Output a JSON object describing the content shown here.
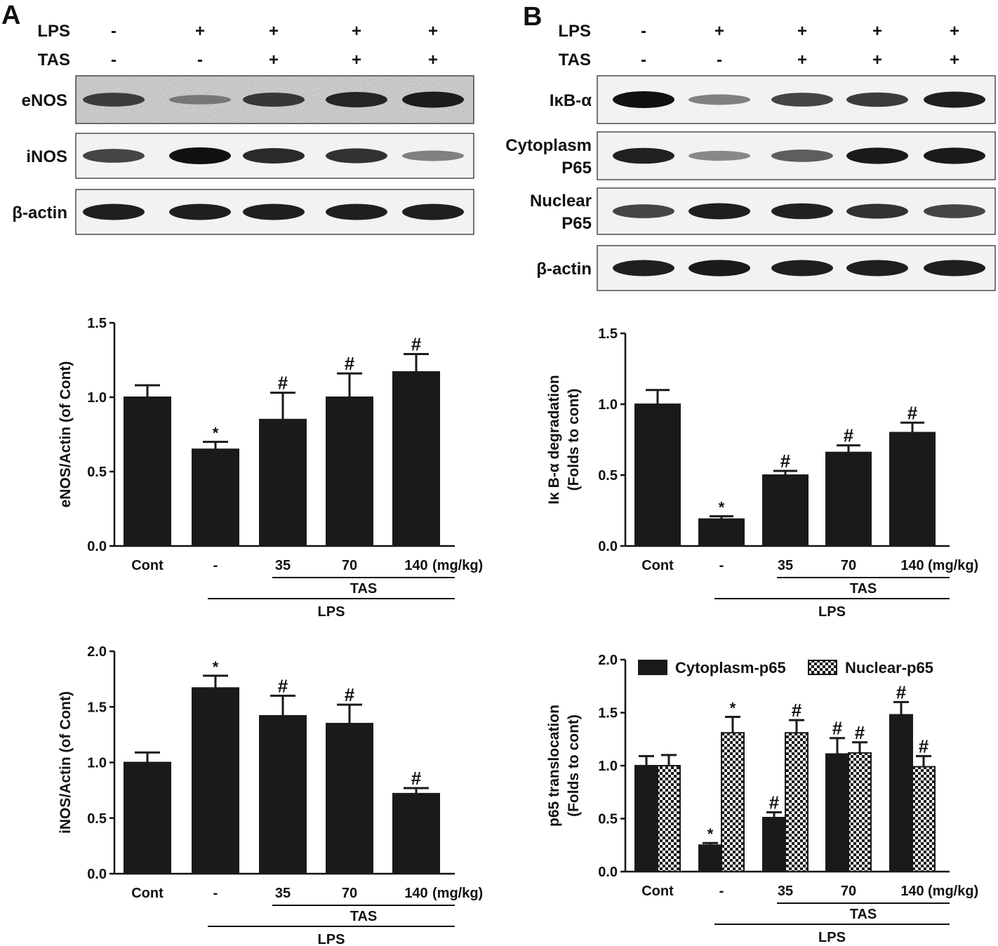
{
  "colors": {
    "bar": "#1a1a1a",
    "axis": "#111111",
    "hatch": "#1a1a1a",
    "background": "#ffffff"
  },
  "panel_a": {
    "label": "A",
    "treatments": [
      {
        "name": "LPS",
        "marks": [
          "-",
          "+",
          "+",
          "+",
          "+"
        ]
      },
      {
        "name": "TAS",
        "marks": [
          "-",
          "-",
          "+",
          "+",
          "+"
        ]
      }
    ],
    "blots": [
      {
        "label": "eNOS",
        "intensity": [
          0.7,
          0.25,
          0.72,
          0.85,
          0.92
        ],
        "texture": "noisy"
      },
      {
        "label": "iNOS",
        "intensity": [
          0.7,
          1.0,
          0.85,
          0.8,
          0.35
        ],
        "texture": "clean"
      },
      {
        "label": "β-actin",
        "intensity": [
          0.92,
          0.92,
          0.92,
          0.92,
          0.92
        ],
        "texture": "clean"
      }
    ]
  },
  "panel_b": {
    "label": "B",
    "treatments": [
      {
        "name": "LPS",
        "marks": [
          "-",
          "+",
          "+",
          "+",
          "+"
        ]
      },
      {
        "name": "TAS",
        "marks": [
          "-",
          "-",
          "+",
          "+",
          "+"
        ]
      }
    ],
    "blots": [
      {
        "label_lines": [
          "IκB-α"
        ],
        "intensity": [
          1.0,
          0.35,
          0.7,
          0.75,
          0.92
        ]
      },
      {
        "label_lines": [
          "Cytoplasm",
          "P65"
        ],
        "intensity": [
          0.9,
          0.3,
          0.55,
          0.95,
          0.95
        ]
      },
      {
        "label_lines": [
          "Nuclear",
          "P65"
        ],
        "intensity": [
          0.7,
          0.92,
          0.9,
          0.8,
          0.7
        ]
      },
      {
        "label_lines": [
          "β-actin"
        ],
        "intensity": [
          0.92,
          0.95,
          0.92,
          0.92,
          0.92
        ]
      }
    ]
  },
  "chart_data": [
    {
      "type": "bar",
      "ylabel": "eNOS/Actin (of Cont)",
      "ylim": [
        0,
        1.5
      ],
      "yticks": [
        "0.0",
        "0.5",
        "1.0",
        "1.5"
      ],
      "categories": [
        "Cont",
        "-",
        "35",
        "70",
        "140"
      ],
      "unit": "(mg/kg)",
      "bracket_labels": {
        "tas": "TAS",
        "lps": "LPS"
      },
      "series": [
        {
          "values": [
            1.0,
            0.65,
            0.85,
            1.0,
            1.17
          ],
          "errors": [
            0.08,
            0.05,
            0.18,
            0.16,
            0.12
          ],
          "marks": [
            "",
            "*",
            "#",
            "#",
            "#"
          ],
          "fill": "solid"
        }
      ]
    },
    {
      "type": "bar",
      "ylabel": "iNOS/Actin (of Cont)",
      "ylim": [
        0,
        2.0
      ],
      "yticks": [
        "0.0",
        "0.5",
        "1.0",
        "1.5",
        "2.0"
      ],
      "categories": [
        "Cont",
        "-",
        "35",
        "70",
        "140"
      ],
      "unit": "(mg/kg)",
      "bracket_labels": {
        "tas": "TAS",
        "lps": "LPS"
      },
      "series": [
        {
          "values": [
            1.0,
            1.67,
            1.42,
            1.35,
            0.72
          ],
          "errors": [
            0.09,
            0.11,
            0.18,
            0.17,
            0.05
          ],
          "marks": [
            "",
            "*",
            "#",
            "#",
            "#"
          ],
          "fill": "solid"
        }
      ]
    },
    {
      "type": "bar",
      "ylabel": "Iκ B-α  degradation",
      "ylabel2": "(Folds to cont)",
      "ylim": [
        0,
        1.5
      ],
      "yticks": [
        "0.0",
        "0.5",
        "1.0",
        "1.5"
      ],
      "categories": [
        "Cont",
        "-",
        "35",
        "70",
        "140"
      ],
      "unit": "(mg/kg)",
      "bracket_labels": {
        "tas": "TAS",
        "lps": "LPS"
      },
      "series": [
        {
          "values": [
            1.0,
            0.19,
            0.5,
            0.66,
            0.8
          ],
          "errors": [
            0.1,
            0.02,
            0.03,
            0.05,
            0.07
          ],
          "marks": [
            "",
            "*",
            "#",
            "#",
            "#"
          ],
          "fill": "solid"
        }
      ]
    },
    {
      "type": "bar",
      "ylabel": "p65 translocation",
      "ylabel2": "(Folds to cont)",
      "ylim": [
        0,
        2.0
      ],
      "yticks": [
        "0.0",
        "0.5",
        "1.0",
        "1.5",
        "2.0"
      ],
      "categories": [
        "Cont",
        "-",
        "35",
        "70",
        "140"
      ],
      "unit": "(mg/kg)",
      "bracket_labels": {
        "tas": "TAS",
        "lps": "LPS"
      },
      "legend": "top",
      "series": [
        {
          "name": "Cytoplasm-p65",
          "values": [
            1.0,
            0.25,
            0.51,
            1.11,
            1.48
          ],
          "errors": [
            0.09,
            0.02,
            0.05,
            0.15,
            0.12
          ],
          "marks": [
            "",
            "*",
            "#",
            "#",
            "#"
          ],
          "fill": "solid"
        },
        {
          "name": "Nuclear-p65",
          "values": [
            1.0,
            1.31,
            1.31,
            1.12,
            0.99
          ],
          "errors": [
            0.1,
            0.15,
            0.12,
            0.1,
            0.1
          ],
          "marks": [
            "",
            "*",
            "#",
            "#",
            "#"
          ],
          "fill": "checker"
        }
      ]
    }
  ]
}
